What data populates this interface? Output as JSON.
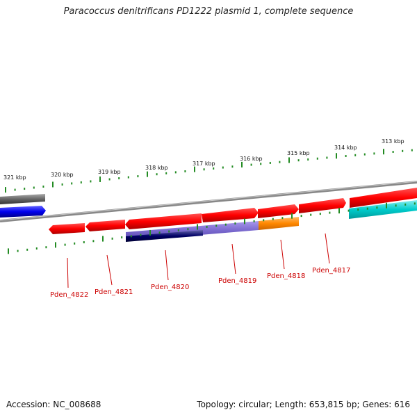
{
  "title": "Paracoccus denitrificans PD1222 plasmid 1, complete sequence",
  "accession": "Accession: NC_008688",
  "summary": "Topology: circular; Length: 653,815 bp; Genes: 616",
  "scale": [
    "321 kbp",
    "320 kbp",
    "319 kbp",
    "318 kbp",
    "317 kbp",
    "316 kbp",
    "315 kbp",
    "314 kbp",
    "313 kbp"
  ],
  "genes": [
    "Pden_4822",
    "Pden_4821",
    "Pden_4820",
    "Pden_4819",
    "Pden_4818",
    "Pden_4817"
  ],
  "colors": {
    "gene_red": "#ff0000",
    "backbone": "#888888",
    "blue": "#0000ee",
    "navy": "#000066",
    "purple": "#7766cc",
    "orange": "#ff8800",
    "cyan": "#00cccc",
    "gray_feature": "#666666",
    "tick_green": "#228b22",
    "label_red": "#cc0000"
  }
}
